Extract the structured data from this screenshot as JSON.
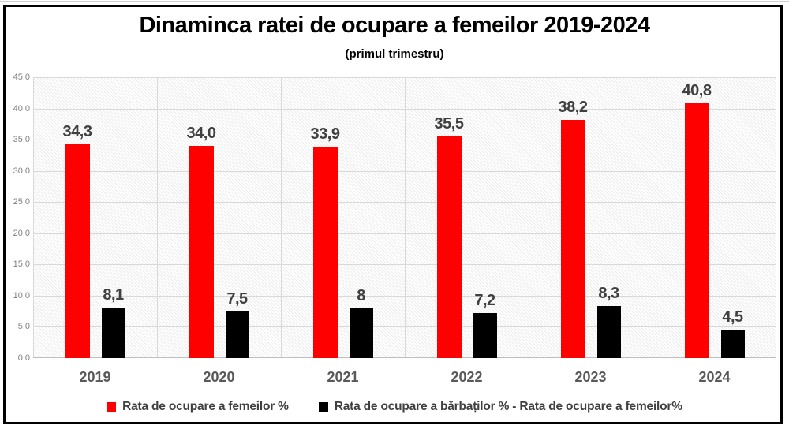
{
  "chart_data": {
    "type": "bar",
    "title": "Dinaminca ratei de ocupare a femeilor 2019-2024",
    "subtitle": "(primul trimestru)",
    "categories": [
      "2019",
      "2020",
      "2021",
      "2022",
      "2023",
      "2024"
    ],
    "series": [
      {
        "name": "Rata de ocupare a femeilor %",
        "color": "#ff0000",
        "values": [
          34.3,
          34.0,
          33.9,
          35.5,
          38.2,
          40.8
        ],
        "labels": [
          "34,3",
          "34,0",
          "33,9",
          "35,5",
          "38,2",
          "40,8"
        ]
      },
      {
        "name": "Rata de ocupare a bărbaților % - Rata de ocupare a femeilor%",
        "color": "#000000",
        "values": [
          8.1,
          7.5,
          8,
          7.2,
          8.3,
          4.5
        ],
        "labels": [
          "8,1",
          "7,5",
          "8",
          "7,2",
          "8,3",
          "4,5"
        ]
      }
    ],
    "y_axis": {
      "min": 0,
      "max": 45,
      "step": 5,
      "tick_labels": [
        "0,0",
        "5,0",
        "10,0",
        "15,0",
        "20,0",
        "25,0",
        "30,0",
        "35,0",
        "40,0",
        "45,0"
      ]
    },
    "grid": true,
    "legend_position": "bottom",
    "colors": {
      "gridline": "#d9d9d9",
      "axis_line": "#bfbfbf",
      "tick_label": "#808080",
      "category_label": "#595959",
      "data_label": "#404040",
      "frame": "#000000"
    }
  }
}
